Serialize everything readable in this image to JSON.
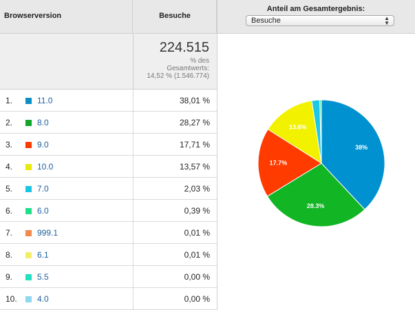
{
  "header": {
    "col_browser": "Browserversion",
    "col_visits": "Besuche",
    "col_share": "Anteil am Gesamtergebnis:",
    "share_select": "Besuche"
  },
  "summary": {
    "total": "224.515",
    "label_line1": "% des",
    "label_line2": "Gesamtwerts:",
    "label_line3": "14,52 % (1.546.774)"
  },
  "rows": [
    {
      "rank": "1.",
      "version": "11.0",
      "pct": "38,01 %",
      "color": "#0c8fc7"
    },
    {
      "rank": "2.",
      "version": "8.0",
      "pct": "28,27 %",
      "color": "#12a52b"
    },
    {
      "rank": "3.",
      "version": "9.0",
      "pct": "17,71 %",
      "color": "#fa3c00"
    },
    {
      "rank": "4.",
      "version": "10.0",
      "pct": "13,57 %",
      "color": "#e9e90e"
    },
    {
      "rank": "5.",
      "version": "7.0",
      "pct": "2,03 %",
      "color": "#1ac6e0"
    },
    {
      "rank": "6.",
      "version": "6.0",
      "pct": "0,39 %",
      "color": "#1fe08a"
    },
    {
      "rank": "7.",
      "version": "999.1",
      "pct": "0,01 %",
      "color": "#f08a50"
    },
    {
      "rank": "8.",
      "version": "6.1",
      "pct": "0,01 %",
      "color": "#f2ee6a"
    },
    {
      "rank": "9.",
      "version": "5.5",
      "pct": "0,00 %",
      "color": "#22e0c0"
    },
    {
      "rank": "10.",
      "version": "4.0",
      "pct": "0,00 %",
      "color": "#8fd8f0"
    }
  ],
  "chart_data": {
    "type": "pie",
    "categories": [
      "11.0",
      "8.0",
      "9.0",
      "10.0",
      "7.0",
      "6.0",
      "999.1",
      "6.1",
      "5.5",
      "4.0"
    ],
    "values": [
      38.01,
      28.27,
      17.71,
      13.57,
      2.03,
      0.39,
      0.01,
      0.01,
      0.0,
      0.0
    ],
    "colors": [
      "#0092d0",
      "#12b524",
      "#ff3b00",
      "#f2f200",
      "#1dc7e6",
      "#22dd88",
      "#f08a50",
      "#f2ee6a",
      "#22e0c0",
      "#8fd8f0"
    ],
    "slice_labels": [
      "38%",
      "28.3%",
      "17.7%",
      "13.6%",
      "",
      "",
      "",
      "",
      "",
      ""
    ]
  }
}
